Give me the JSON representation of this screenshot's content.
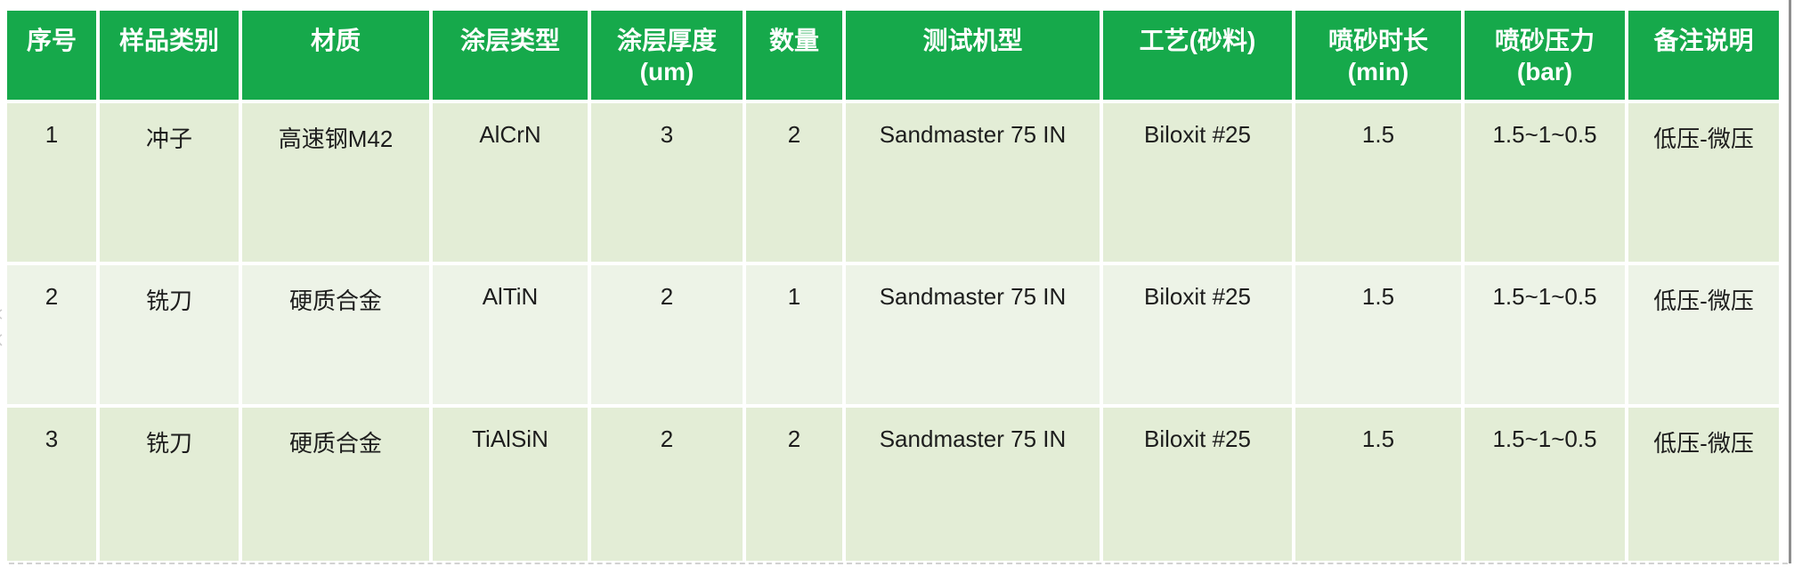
{
  "page": {
    "background": "#ffffff"
  },
  "colors": {
    "header_bg": "#16a94b",
    "header_text": "#ffffff",
    "row_odd_bg": "#e3edd6",
    "row_even_bg": "#edf3e7",
    "body_text": "#1d1d1d",
    "right_edge_line": "#8e8e8e",
    "bottom_edge_line": "#c7c7c7"
  },
  "table": {
    "columns": [
      {
        "key": "serial",
        "label": "序号",
        "unit": ""
      },
      {
        "key": "sample-category",
        "label": "样品类别",
        "unit": ""
      },
      {
        "key": "material",
        "label": "材质",
        "unit": ""
      },
      {
        "key": "coating-type",
        "label": "涂层类型",
        "unit": ""
      },
      {
        "key": "coating-thickness",
        "label": "涂层厚度",
        "unit": "(um)"
      },
      {
        "key": "quantity",
        "label": "数量",
        "unit": ""
      },
      {
        "key": "test-machine",
        "label": "测试机型",
        "unit": ""
      },
      {
        "key": "process-abrasive",
        "label": "工艺(砂料)",
        "unit": ""
      },
      {
        "key": "blast-duration",
        "label": "喷砂时长",
        "unit": "(min)"
      },
      {
        "key": "blast-pressure",
        "label": "喷砂压力",
        "unit": "(bar)"
      },
      {
        "key": "remarks",
        "label": "备注说明",
        "unit": ""
      }
    ],
    "rows": [
      {
        "cells": [
          "1",
          "冲子",
          "高速钢M42",
          "AlCrN",
          "3",
          "2",
          "Sandmaster 75 IN",
          "Biloxit #25",
          "1.5",
          "1.5~1~0.5",
          "低压-微压"
        ]
      },
      {
        "cells": [
          "2",
          "铣刀",
          "硬质合金",
          "AlTiN",
          "2",
          "1",
          "Sandmaster 75 IN",
          "Biloxit #25",
          "1.5",
          "1.5~1~0.5",
          "低压-微压"
        ]
      },
      {
        "cells": [
          "3",
          "铣刀",
          "硬质合金",
          "TiAlSiN",
          "2",
          "2",
          "Sandmaster 75 IN",
          "Biloxit #25",
          "1.5",
          "1.5~1~0.5",
          "低压-微压"
        ]
      }
    ]
  }
}
